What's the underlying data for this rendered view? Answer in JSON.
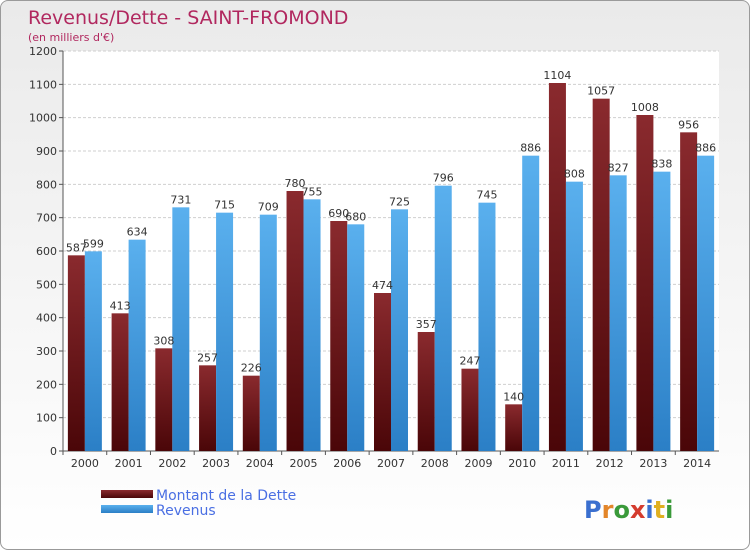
{
  "chart_data": {
    "type": "bar",
    "title": "Revenus/Dette - SAINT-FROMOND",
    "subtitle": "(en milliers d'€)",
    "categories": [
      "2000",
      "2001",
      "2002",
      "2003",
      "2004",
      "2005",
      "2006",
      "2007",
      "2008",
      "2009",
      "2010",
      "2011",
      "2012",
      "2013",
      "2014"
    ],
    "series": [
      {
        "name": "Montant de la Dette",
        "values": [
          587,
          413,
          308,
          257,
          226,
          780,
          690,
          474,
          357,
          247,
          140,
          1104,
          1057,
          1008,
          956
        ]
      },
      {
        "name": "Revenus",
        "values": [
          599,
          634,
          731,
          715,
          709,
          755,
          680,
          725,
          796,
          745,
          886,
          808,
          827,
          838,
          886
        ]
      }
    ],
    "ylim": [
      0,
      1200
    ],
    "yticks": [
      0,
      100,
      200,
      300,
      400,
      500,
      600,
      700,
      800,
      900,
      1000,
      1100,
      1200
    ],
    "grid": true,
    "legend_position": "bottom-left",
    "colors": {
      "dette": "#7a1c20",
      "dette_dark": "#4a0608",
      "revenus": "#4ba3e6",
      "revenus_dark": "#2b7fc6"
    }
  },
  "logo": {
    "text": "Proxiti"
  }
}
